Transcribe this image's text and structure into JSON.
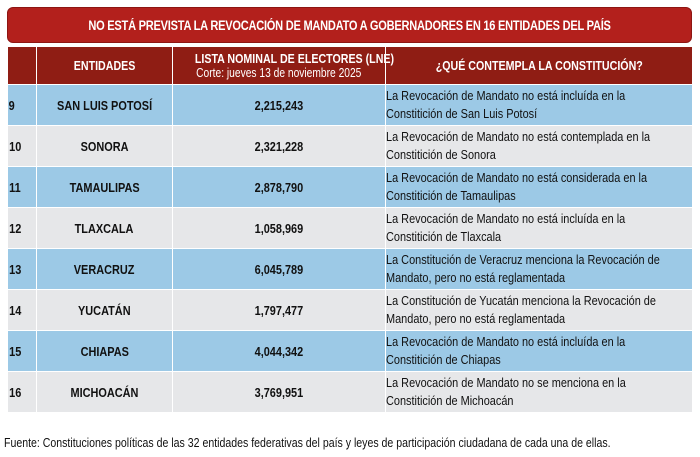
{
  "title": "NO ESTÁ PREVISTA LA REVOCACIÓN DE MANDATO A GOBERNADORES EN 16 ENTIDADES DEL PAÍS",
  "colors": {
    "title_bg": "#b3201c",
    "header_bg": "#8f1d14",
    "row_blue": "#9cc9e6",
    "row_gray": "#e6e7e9"
  },
  "table": {
    "headers": {
      "number": "",
      "entity": "ENTIDADES",
      "lne_title": "LISTA NOMINAL DE ELECTORES (LNE)",
      "lne_subtitle": "Corte: jueves 13 de noviembre 2025",
      "constitution": "¿QUÉ CONTEMPLA LA CONSTITUCIÓN?"
    },
    "rows": [
      {
        "n": "9",
        "entity": "SAN LUIS POTOSÍ",
        "lne": "2,215,243",
        "desc": "La Revocación de Mandato no está incluída en la Constitición de San Luis Potosí"
      },
      {
        "n": "10",
        "entity": "SONORA",
        "lne": "2,321,228",
        "desc": "La Revocación de Mandato no está contemplada en la Constitición de Sonora"
      },
      {
        "n": "11",
        "entity": "TAMAULIPAS",
        "lne": "2,878,790",
        "desc": "La Revocación de Mandato no está considerada en la Constitición de Tamaulipas"
      },
      {
        "n": "12",
        "entity": "TLAXCALA",
        "lne": "1,058,969",
        "desc": "La Revocación de Mandato no está incluída en la Constitición de Tlaxcala"
      },
      {
        "n": "13",
        "entity": "VERACRUZ",
        "lne": "6,045,789",
        "desc": "La Constitución de Veracruz menciona la Revocación de Mandato, pero no está reglamentada"
      },
      {
        "n": "14",
        "entity": "YUCATÁN",
        "lne": "1,797,477",
        "desc": "La Constitución de Yucatán menciona la Revocación de Mandato, pero no está reglamentada"
      },
      {
        "n": "15",
        "entity": "CHIAPAS",
        "lne": "4,044,342",
        "desc": "La Revocación de Mandato no está incluída en la Constitición de Chiapas"
      },
      {
        "n": "16",
        "entity": "MICHOACÁN",
        "lne": "3,769,951",
        "desc": "La Revocación de Mandato no se menciona en la Constitición de Michoacán"
      }
    ]
  },
  "source": "Fuente: Constituciones políticas de las 32 entidades federativas del país y leyes de participación ciudadana de cada una de ellas."
}
